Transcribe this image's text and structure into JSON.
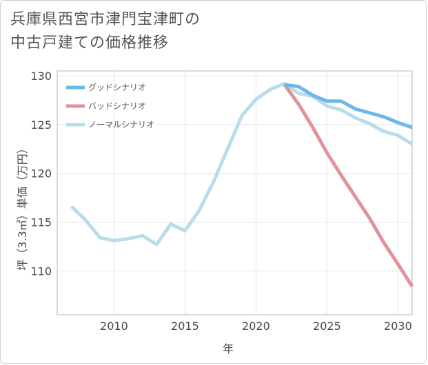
{
  "page": {
    "title_line1": "兵庫県西宮市津門宝津町の",
    "title_line2": "中古戸建ての価格推移"
  },
  "chart_data": {
    "type": "line",
    "xlabel": "年",
    "ylabel": "坪（3.3㎡）単価（万円）",
    "xlim": [
      2006,
      2031
    ],
    "ylim": [
      105.5,
      130.5
    ],
    "xticks": [
      2010,
      2015,
      2020,
      2025,
      2030
    ],
    "yticks": [
      110,
      115,
      120,
      125,
      130
    ],
    "grid": true,
    "legend_position": "top-left",
    "series": [
      {
        "name": "グッドシナリオ",
        "color": "#6bb8ea",
        "x": [
          2022,
          2023,
          2024,
          2025,
          2026,
          2027,
          2028,
          2029,
          2030,
          2031
        ],
        "values": [
          129.1,
          128.9,
          128.0,
          127.4,
          127.4,
          126.6,
          126.2,
          125.8,
          125.2,
          124.7
        ]
      },
      {
        "name": "バッドシナリオ",
        "color": "#e0939a",
        "x": [
          2022,
          2023,
          2024,
          2025,
          2026,
          2027,
          2028,
          2029,
          2030,
          2031
        ],
        "values": [
          129.1,
          127.1,
          124.7,
          122.1,
          119.8,
          117.6,
          115.4,
          112.9,
          110.7,
          108.4
        ]
      },
      {
        "name": "ノーマルシナリオ",
        "color": "#b9dceb",
        "x": [
          2007,
          2008,
          2009,
          2010,
          2011,
          2012,
          2013,
          2014,
          2015,
          2016,
          2017,
          2018,
          2019,
          2020,
          2021,
          2022,
          2023,
          2024,
          2025,
          2026,
          2027,
          2028,
          2029,
          2030,
          2031
        ],
        "values": [
          116.6,
          115.2,
          113.4,
          113.1,
          113.3,
          113.6,
          112.7,
          114.8,
          114.1,
          116.2,
          119.1,
          122.5,
          125.9,
          127.6,
          128.6,
          129.2,
          128.2,
          127.9,
          126.9,
          126.5,
          125.7,
          125.1,
          124.3,
          123.9,
          123.0
        ]
      }
    ]
  }
}
